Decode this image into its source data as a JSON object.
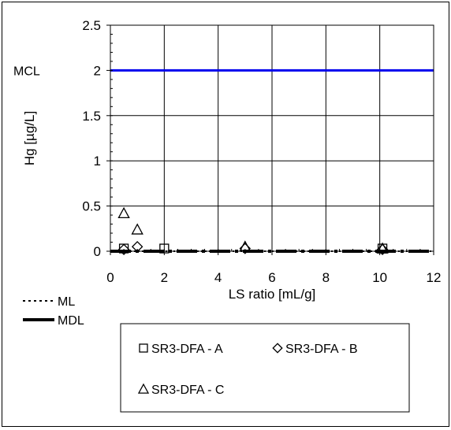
{
  "chart_data": {
    "type": "scatter",
    "xlabel": "LS ratio [mL/g]",
    "ylabel": "Hg [µg/L]",
    "xlim": [
      0,
      12
    ],
    "ylim": [
      0,
      2.5
    ],
    "xticks": [
      "0",
      "2",
      "4",
      "6",
      "8",
      "10",
      "12"
    ],
    "yticks": [
      "0",
      "0.5",
      "1",
      "1.5",
      "2",
      "2.5"
    ],
    "grid": true,
    "series": [
      {
        "name": "SR3-DFA - A",
        "marker": "square",
        "x": [
          0.5,
          2.0,
          10.1
        ],
        "y": [
          0.03,
          0.03,
          0.03
        ]
      },
      {
        "name": "SR3-DFA - B",
        "marker": "diamond",
        "x": [
          0.5,
          1.0,
          5.0,
          10.1
        ],
        "y": [
          0.02,
          0.05,
          0.03,
          0.02
        ]
      },
      {
        "name": "SR3-DFA - C",
        "marker": "triangle",
        "x": [
          0.5,
          1.0,
          5.0,
          10.1
        ],
        "y": [
          0.42,
          0.24,
          0.05,
          0.03
        ]
      }
    ],
    "reference_lines": [
      {
        "label": "MCL",
        "y": 2.0,
        "color": "#0000ee",
        "style": "solid"
      },
      {
        "label": "ML",
        "y": 0.0,
        "color": "#000000",
        "style": "dotted"
      },
      {
        "label": "MDL",
        "y": 0.0,
        "color": "#000000",
        "style": "dash-dot"
      }
    ],
    "legend_position": "bottom"
  }
}
